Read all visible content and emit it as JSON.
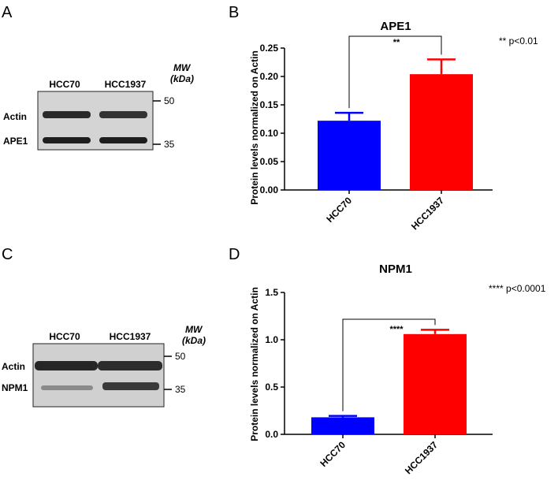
{
  "panels": {
    "A": {
      "letter": "A",
      "lanes": [
        "HCC70",
        "HCC1937"
      ],
      "mw_label_line1": "MW",
      "mw_label_line2": "(kDa)",
      "rows": [
        "Actin",
        "APE1"
      ],
      "mw_markers": [
        "50",
        "35"
      ]
    },
    "B": {
      "letter": "B"
    },
    "C": {
      "letter": "C",
      "lanes": [
        "HCC70",
        "HCC1937"
      ],
      "mw_label_line1": "MW",
      "mw_label_line2": "(kDa)",
      "rows": [
        "Actin",
        "NPM1"
      ],
      "mw_markers": [
        "50",
        "35"
      ]
    },
    "D": {
      "letter": "D"
    }
  },
  "chart_data": [
    {
      "type": "bar",
      "title": "APE1",
      "categories": [
        "HCC70",
        "HCC1937"
      ],
      "values": [
        0.122,
        0.204
      ],
      "errors": [
        0.014,
        0.026
      ],
      "colors": [
        "#0000ff",
        "#ff0000"
      ],
      "ylabel": "Protein levels normalized on Actin",
      "xlabel": "",
      "ylim": [
        0,
        0.25
      ],
      "yticks": [
        "0.00",
        "0.05",
        "0.10",
        "0.15",
        "0.20",
        "0.25"
      ],
      "significance": "**",
      "annotation": "** p<0.01"
    },
    {
      "type": "bar",
      "title": "NPM1",
      "categories": [
        "HCC70",
        "HCC1937"
      ],
      "values": [
        0.18,
        1.06
      ],
      "errors": [
        0.015,
        0.045
      ],
      "colors": [
        "#0000ff",
        "#ff0000"
      ],
      "ylabel": "Protein levels normalized on Actin",
      "xlabel": "",
      "ylim": [
        0,
        1.5
      ],
      "yticks": [
        "0.0",
        "0.5",
        "1.0",
        "1.5"
      ],
      "significance": "****",
      "annotation": "**** p<0.0001"
    }
  ]
}
